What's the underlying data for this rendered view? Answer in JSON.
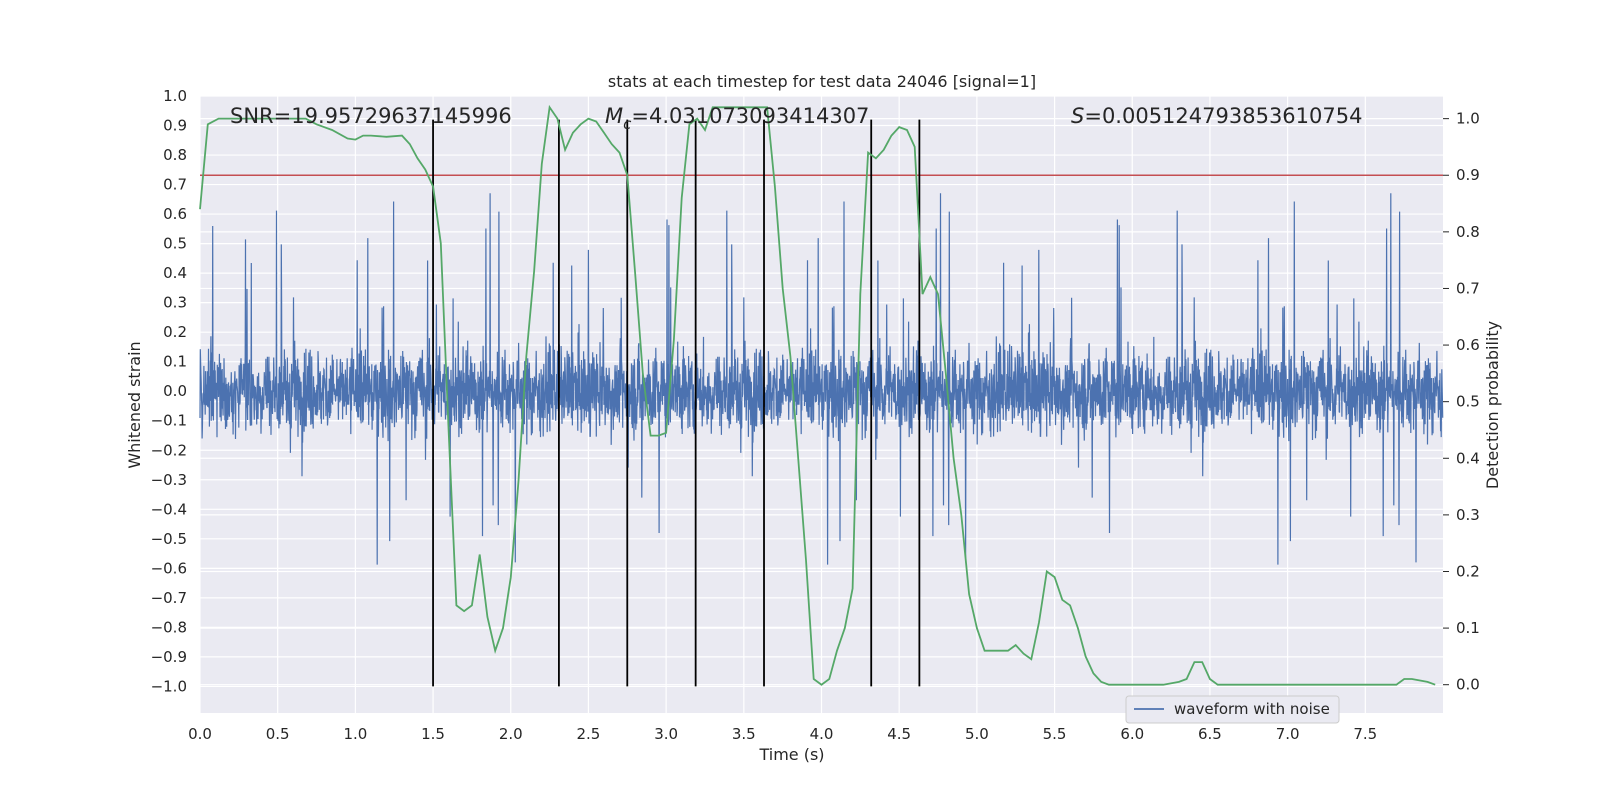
{
  "chart_data": {
    "type": "line",
    "title": "stats at each timestep for test data 24046 [signal=1]",
    "xlabel": "Time (s)",
    "ylabel": "Whitened strain",
    "ylabel_right": "Detection probability",
    "xlim": [
      0.0,
      8.0
    ],
    "ylim": [
      -1.09,
      1.0
    ],
    "ylim_right": [
      -0.05,
      1.04
    ],
    "x_ticks": [
      0.0,
      0.5,
      1.0,
      1.5,
      2.0,
      2.5,
      3.0,
      3.5,
      4.0,
      4.5,
      5.0,
      5.5,
      6.0,
      6.5,
      7.0,
      7.5
    ],
    "x_tick_labels": [
      "0.0",
      "0.5",
      "1.0",
      "1.5",
      "2.0",
      "2.5",
      "3.0",
      "3.5",
      "4.0",
      "4.5",
      "5.0",
      "5.5",
      "6.0",
      "6.5",
      "7.0",
      "7.5"
    ],
    "y_ticks": [
      1.0,
      0.9,
      0.8,
      0.7,
      0.6,
      0.5,
      0.4,
      0.3,
      0.2,
      0.1,
      0.0,
      -0.1,
      -0.2,
      -0.3,
      -0.4,
      -0.5,
      -0.6,
      -0.7,
      -0.8,
      -0.9,
      -1.0
    ],
    "y_tick_labels": [
      "1.0",
      "0.9",
      "0.8",
      "0.7",
      "0.6",
      "0.5",
      "0.4",
      "0.3",
      "0.2",
      "0.1",
      "0.0",
      "−0.1",
      "−0.2",
      "−0.3",
      "−0.4",
      "−0.5",
      "−0.6",
      "−0.7",
      "−0.8",
      "−0.9",
      "−1.0"
    ],
    "y_right_ticks": [
      1.0,
      0.9,
      0.8,
      0.7,
      0.6,
      0.5,
      0.4,
      0.3,
      0.2,
      0.1,
      0.0
    ],
    "y_right_tick_labels": [
      "1.0",
      "0.9",
      "0.8",
      "0.7",
      "0.6",
      "0.5",
      "0.4",
      "0.3",
      "0.2",
      "0.1",
      "0.0"
    ],
    "annotations": {
      "snr": "SNR=19.95729637145996",
      "mc_symbol": "M",
      "mc_sub": "c",
      "mc_value": "=4.031073093414307",
      "s_symbol": "S",
      "s_value": "=0.005124793853610754"
    },
    "threshold": {
      "value": 0.9,
      "axis": "right",
      "color": "#c44e52"
    },
    "vertical_lines": [
      1.5,
      2.31,
      2.75,
      3.19,
      3.63,
      4.32,
      4.63
    ],
    "vertical_line_range": [
      -1.0,
      0.92
    ],
    "detection_probability": {
      "name": "detection probability",
      "color": "#55a868",
      "x": [
        0.0,
        0.05,
        0.12,
        0.2,
        0.3,
        0.4,
        0.5,
        0.6,
        0.68,
        0.75,
        0.85,
        0.95,
        1.0,
        1.05,
        1.1,
        1.2,
        1.3,
        1.35,
        1.4,
        1.45,
        1.5,
        1.55,
        1.6,
        1.65,
        1.7,
        1.75,
        1.8,
        1.85,
        1.9,
        1.95,
        2.0,
        2.05,
        2.1,
        2.15,
        2.2,
        2.25,
        2.3,
        2.35,
        2.4,
        2.45,
        2.5,
        2.55,
        2.6,
        2.65,
        2.7,
        2.75,
        2.8,
        2.85,
        2.9,
        2.95,
        3.0,
        3.05,
        3.1,
        3.15,
        3.2,
        3.25,
        3.3,
        3.4,
        3.5,
        3.6,
        3.65,
        3.7,
        3.75,
        3.8,
        3.85,
        3.9,
        3.95,
        4.0,
        4.05,
        4.1,
        4.15,
        4.2,
        4.25,
        4.3,
        4.35,
        4.4,
        4.45,
        4.5,
        4.55,
        4.6,
        4.65,
        4.7,
        4.75,
        4.8,
        4.85,
        4.9,
        4.95,
        5.0,
        5.05,
        5.1,
        5.2,
        5.25,
        5.3,
        5.35,
        5.4,
        5.45,
        5.5,
        5.55,
        5.6,
        5.65,
        5.7,
        5.75,
        5.8,
        5.85,
        5.9,
        6.0,
        6.1,
        6.2,
        6.3,
        6.35,
        6.4,
        6.45,
        6.5,
        6.55,
        6.6,
        6.7,
        6.8,
        7.0,
        7.2,
        7.4,
        7.6,
        7.7,
        7.75,
        7.8,
        7.9,
        7.95
      ],
      "y": [
        0.84,
        0.99,
        1.0,
        1.0,
        1.0,
        1.0,
        1.0,
        1.0,
        1.0,
        0.99,
        0.98,
        0.965,
        0.963,
        0.97,
        0.97,
        0.968,
        0.97,
        0.955,
        0.93,
        0.91,
        0.88,
        0.78,
        0.45,
        0.14,
        0.13,
        0.14,
        0.23,
        0.12,
        0.06,
        0.1,
        0.19,
        0.36,
        0.58,
        0.73,
        0.92,
        1.02,
        1.0,
        0.945,
        0.975,
        0.99,
        1.0,
        0.995,
        0.975,
        0.955,
        0.94,
        0.9,
        0.73,
        0.55,
        0.44,
        0.44,
        0.445,
        0.61,
        0.86,
        0.99,
        1.0,
        0.98,
        1.02,
        1.02,
        1.02,
        1.02,
        1.02,
        0.88,
        0.7,
        0.58,
        0.4,
        0.22,
        0.01,
        0.0,
        0.01,
        0.06,
        0.1,
        0.17,
        0.69,
        0.94,
        0.93,
        0.945,
        0.97,
        0.985,
        0.98,
        0.95,
        0.69,
        0.72,
        0.69,
        0.55,
        0.4,
        0.3,
        0.16,
        0.1,
        0.06,
        0.06,
        0.06,
        0.07,
        0.055,
        0.045,
        0.11,
        0.2,
        0.19,
        0.15,
        0.14,
        0.1,
        0.05,
        0.02,
        0.005,
        0.0,
        0.0,
        0.0,
        0.0,
        0.0,
        0.005,
        0.01,
        0.04,
        0.04,
        0.01,
        0.0,
        0.0,
        0.0,
        0.0,
        0.0,
        0.0,
        0.0,
        0.0,
        0.0,
        0.01,
        0.01,
        0.005,
        0.0
      ]
    },
    "series": [
      {
        "name": "waveform with noise",
        "color": "#4c72b0",
        "sample_rate": 512,
        "seed": 24046
      }
    ],
    "legend": {
      "position": "bottom-center",
      "entries": [
        "waveform with noise"
      ]
    }
  }
}
